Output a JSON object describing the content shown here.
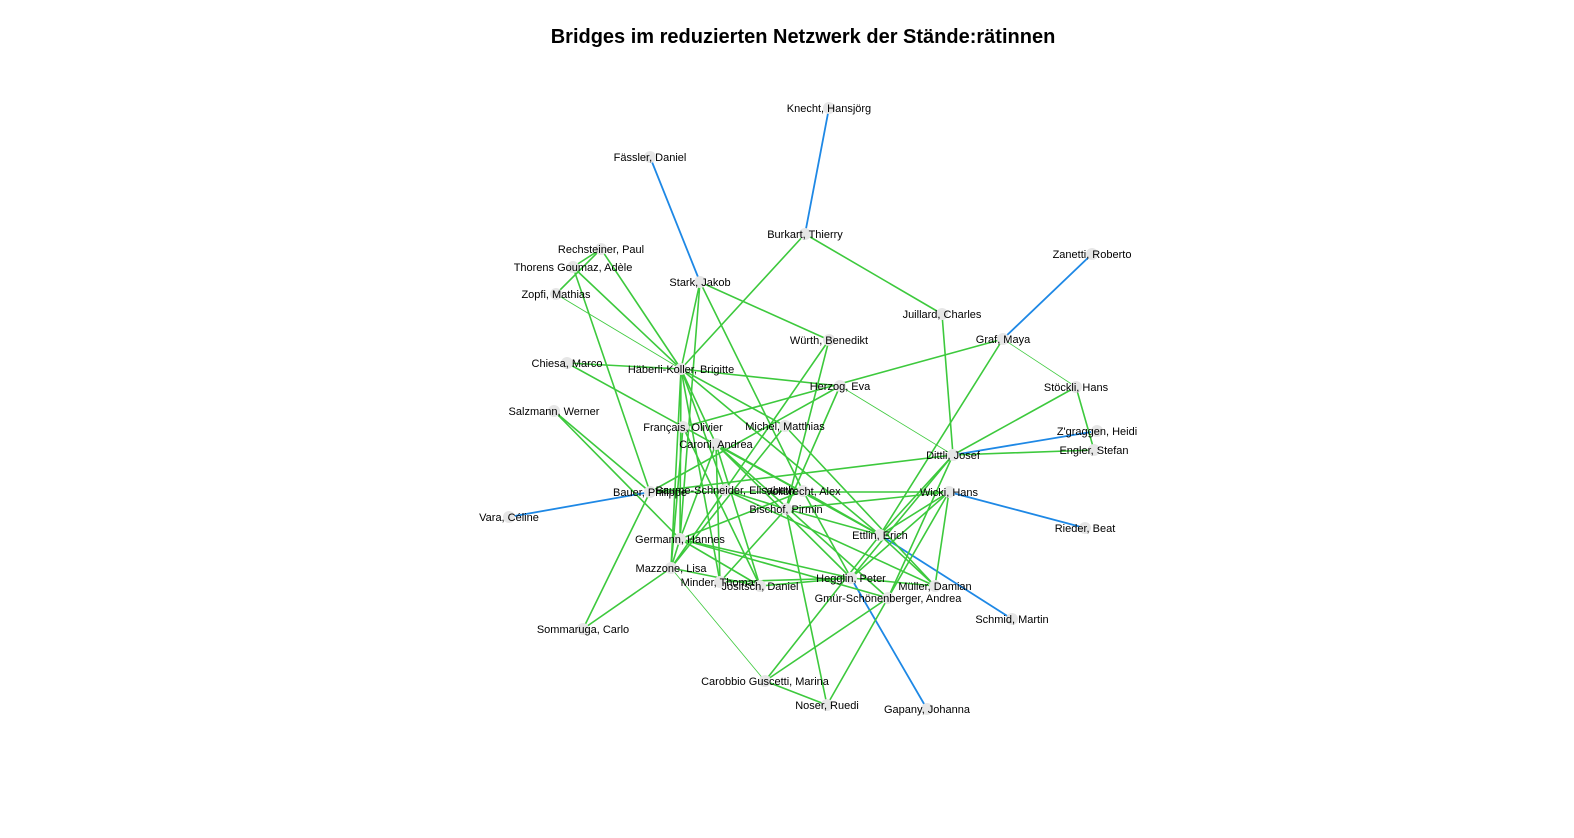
{
  "title": "Bridges im reduzierten Netzwerk der Stände:rätinnen",
  "colors": {
    "regular_edge": "#3dc93d",
    "bridge_edge": "#1e88e5",
    "node": "#e6e6e6",
    "label": "#000000"
  },
  "nodes": [
    "Knecht, Hansjörg",
    "Fässler, Daniel",
    "Burkart, Thierry",
    "Rechsteiner, Paul",
    "Thorens Goumaz, Adèle",
    "Zanetti, Roberto",
    "Stark, Jakob",
    "Zopfi, Mathias",
    "Juillard, Charles",
    "Würth, Benedikt",
    "Graf, Maya",
    "Chiesa, Marco",
    "Häberli-Koller, Brigitte",
    "Herzog, Eva",
    "Stöckli, Hans",
    "Salzmann, Werner",
    "Français, Olivier",
    "Michel, Matthias",
    "Z'graggen, Heidi",
    "Caroni, Andrea",
    "Dittli, Josef",
    "Engler, Stefan",
    "Bauer, Philippe",
    "Baume-Schneider, Elisabeth",
    "Vollbrecht, Alex",
    "Wicki, Hans",
    "Bischof, Pirmin",
    "Vara, Céline",
    "Rieder, Beat",
    "Ettlin, Erich",
    "Germann, Hannes",
    "Mazzone, Lisa",
    "Minder, Thomas",
    "Jositsch, Daniel",
    "Hegglin, Peter",
    "Müller, Damian",
    "Gmür-Schönenberger, Andrea",
    "Sommaruga, Carlo",
    "Schmid, Martin",
    "Carobbio Guscetti, Marina",
    "Noser, Ruedi",
    "Gapany, Johanna"
  ],
  "edges": [
    [
      "Knecht, Hansjörg",
      "Burkart, Thierry",
      "bridge"
    ],
    [
      "Fässler, Daniel",
      "Stark, Jakob",
      "bridge"
    ],
    [
      "Zanetti, Roberto",
      "Graf, Maya",
      "bridge"
    ],
    [
      "Dittli, Josef",
      "Z'graggen, Heidi",
      "bridge"
    ],
    [
      "Bauer, Philippe",
      "Vara, Céline",
      "bridge"
    ],
    [
      "Wicki, Hans",
      "Rieder, Beat",
      "bridge"
    ],
    [
      "Ettlin, Erich",
      "Schmid, Martin",
      "bridge"
    ],
    [
      "Hegglin, Peter",
      "Gapany, Johanna",
      "bridge"
    ],
    [
      "Burkart, Thierry",
      "Juillard, Charles",
      "regular"
    ],
    [
      "Burkart, Thierry",
      "Häberli-Koller, Brigitte",
      "regular"
    ],
    [
      "Rechsteiner, Paul",
      "Thorens Goumaz, Adèle",
      "regular"
    ],
    [
      "Rechsteiner, Paul",
      "Zopfi, Mathias",
      "regular"
    ],
    [
      "Rechsteiner, Paul",
      "Häberli-Koller, Brigitte",
      "regular"
    ],
    [
      "Thorens Goumaz, Adèle",
      "Häberli-Koller, Brigitte",
      "regular"
    ],
    [
      "Thorens Goumaz, Adèle",
      "Bauer, Philippe",
      "regular"
    ],
    [
      "Zopfi, Mathias",
      "Häberli-Koller, Brigitte",
      "thin"
    ],
    [
      "Stark, Jakob",
      "Häberli-Koller, Brigitte",
      "regular"
    ],
    [
      "Stark, Jakob",
      "Würth, Benedikt",
      "regular"
    ],
    [
      "Stark, Jakob",
      "Vollbrecht, Alex",
      "regular"
    ],
    [
      "Stark, Jakob",
      "Germann, Hannes",
      "regular"
    ],
    [
      "Juillard, Charles",
      "Dittli, Josef",
      "regular"
    ],
    [
      "Würth, Benedikt",
      "Bischof, Pirmin",
      "regular"
    ],
    [
      "Würth, Benedikt",
      "Mazzone, Lisa",
      "regular"
    ],
    [
      "Graf, Maya",
      "Français, Olivier",
      "regular"
    ],
    [
      "Graf, Maya",
      "Stöckli, Hans",
      "thin"
    ],
    [
      "Graf, Maya",
      "Ettlin, Erich",
      "regular"
    ],
    [
      "Chiesa, Marco",
      "Häberli-Koller, Brigitte",
      "regular"
    ],
    [
      "Chiesa, Marco",
      "Ettlin, Erich",
      "regular"
    ],
    [
      "Häberli-Koller, Brigitte",
      "Herzog, Eva",
      "regular"
    ],
    [
      "Häberli-Koller, Brigitte",
      "Michel, Matthias",
      "regular"
    ],
    [
      "Häberli-Koller, Brigitte",
      "Caroni, Andrea",
      "regular"
    ],
    [
      "Häberli-Koller, Brigitte",
      "Mazzone, Lisa",
      "regular"
    ],
    [
      "Häberli-Koller, Brigitte",
      "Germann, Hannes",
      "regular"
    ],
    [
      "Häberli-Koller, Brigitte",
      "Ettlin, Erich",
      "regular"
    ],
    [
      "Häberli-Koller, Brigitte",
      "Minder, Thomas",
      "regular"
    ],
    [
      "Häberli-Koller, Brigitte",
      "Baume-Schneider, Elisabeth",
      "regular"
    ],
    [
      "Herzog, Eva",
      "Dittli, Josef",
      "thin"
    ],
    [
      "Herzog, Eva",
      "Bischof, Pirmin",
      "regular"
    ],
    [
      "Herzog, Eva",
      "Bauer, Philippe",
      "regular"
    ],
    [
      "Stöckli, Hans",
      "Dittli, Josef",
      "regular"
    ],
    [
      "Stöckli, Hans",
      "Engler, Stefan",
      "regular"
    ],
    [
      "Salzmann, Werner",
      "Bauer, Philippe",
      "regular"
    ],
    [
      "Salzmann, Werner",
      "Germann, Hannes",
      "regular"
    ],
    [
      "Français, Olivier",
      "Mazzone, Lisa",
      "regular"
    ],
    [
      "Français, Olivier",
      "Jositsch, Daniel",
      "regular"
    ],
    [
      "Michel, Matthias",
      "Müller, Damian",
      "regular"
    ],
    [
      "Michel, Matthias",
      "Mazzone, Lisa",
      "regular"
    ],
    [
      "Caroni, Andrea",
      "Ettlin, Erich",
      "regular"
    ],
    [
      "Caroni, Andrea",
      "Hegglin, Peter",
      "regular"
    ],
    [
      "Caroni, Andrea",
      "Minder, Thomas",
      "regular"
    ],
    [
      "Caroni, Andrea",
      "Gmür-Schönenberger, Andrea",
      "regular"
    ],
    [
      "Caroni, Andrea",
      "Germann, Hannes",
      "regular"
    ],
    [
      "Caroni, Andrea",
      "Jositsch, Daniel",
      "regular"
    ],
    [
      "Dittli, Josef",
      "Engler, Stefan",
      "regular"
    ],
    [
      "Dittli, Josef",
      "Bauer, Philippe",
      "regular"
    ],
    [
      "Dittli, Josef",
      "Hegglin, Peter",
      "regular"
    ],
    [
      "Dittli, Josef",
      "Gmür-Schönenberger, Andrea",
      "regular"
    ],
    [
      "Dittli, Josef",
      "Ettlin, Erich",
      "regular"
    ],
    [
      "Bauer, Philippe",
      "Wicki, Hans",
      "regular"
    ],
    [
      "Bauer, Philippe",
      "Sommaruga, Carlo",
      "regular"
    ],
    [
      "Baume-Schneider, Elisabeth",
      "Bischof, Pirmin",
      "regular"
    ],
    [
      "Baume-Schneider, Elisabeth",
      "Müller, Damian",
      "regular"
    ],
    [
      "Vollbrecht, Alex",
      "Germann, Hannes",
      "regular"
    ],
    [
      "Vollbrecht, Alex",
      "Ettlin, Erich",
      "regular"
    ],
    [
      "Vollbrecht, Alex",
      "Hegglin, Peter",
      "regular"
    ],
    [
      "Wicki, Hans",
      "Bischof, Pirmin",
      "regular"
    ],
    [
      "Wicki, Hans",
      "Ettlin, Erich",
      "regular"
    ],
    [
      "Wicki, Hans",
      "Müller, Damian",
      "regular"
    ],
    [
      "Wicki, Hans",
      "Hegglin, Peter",
      "regular"
    ],
    [
      "Wicki, Hans",
      "Gmür-Schönenberger, Andrea",
      "regular"
    ],
    [
      "Bischof, Pirmin",
      "Minder, Thomas",
      "regular"
    ],
    [
      "Bischof, Pirmin",
      "Noser, Ruedi",
      "regular"
    ],
    [
      "Bischof, Pirmin",
      "Ettlin, Erich",
      "regular"
    ],
    [
      "Ettlin, Erich",
      "Müller, Damian",
      "regular"
    ],
    [
      "Ettlin, Erich",
      "Carobbio Guscetti, Marina",
      "regular"
    ],
    [
      "Germann, Hannes",
      "Mazzone, Lisa",
      "regular"
    ],
    [
      "Germann, Hannes",
      "Hegglin, Peter",
      "regular"
    ],
    [
      "Germann, Hannes",
      "Jositsch, Daniel",
      "regular"
    ],
    [
      "Germann, Hannes",
      "Gmür-Schönenberger, Andrea",
      "regular"
    ],
    [
      "Mazzone, Lisa",
      "Sommaruga, Carlo",
      "regular"
    ],
    [
      "Mazzone, Lisa",
      "Carobbio Guscetti, Marina",
      "thin"
    ],
    [
      "Mazzone, Lisa",
      "Jositsch, Daniel",
      "regular"
    ],
    [
      "Minder, Thomas",
      "Hegglin, Peter",
      "regular"
    ],
    [
      "Jositsch, Daniel",
      "Hegglin, Peter",
      "regular"
    ],
    [
      "Hegglin, Peter",
      "Müller, Damian",
      "regular"
    ],
    [
      "Gmür-Schönenberger, Andrea",
      "Carobbio Guscetti, Marina",
      "regular"
    ],
    [
      "Gmür-Schönenberger, Andrea",
      "Noser, Ruedi",
      "regular"
    ],
    [
      "Carobbio Guscetti, Marina",
      "Noser, Ruedi",
      "regular"
    ]
  ]
}
